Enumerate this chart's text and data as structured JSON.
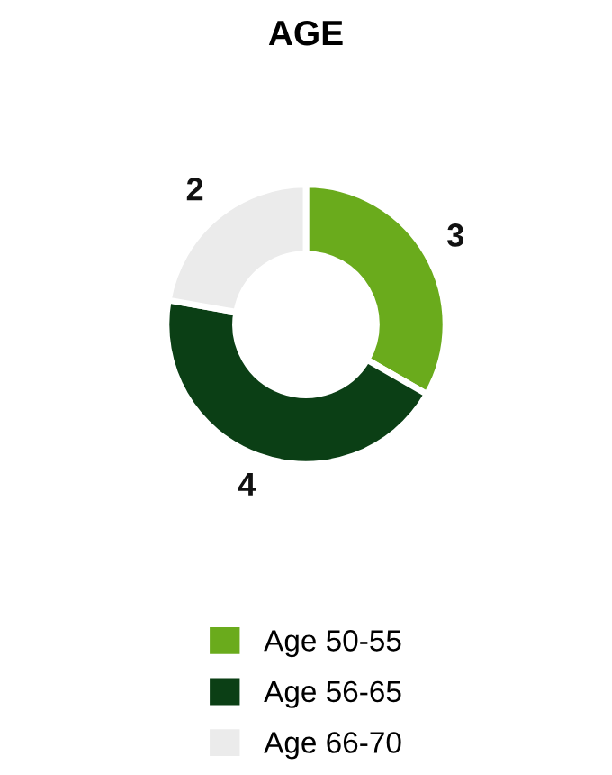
{
  "chart_data": {
    "type": "donut",
    "title": "AGE",
    "categories": [
      "Age 50-55",
      "Age 56-65",
      "Age 66-70"
    ],
    "values": [
      3,
      4,
      2
    ],
    "colors": [
      "#6aab1c",
      "#0b3f15",
      "#ebebeb"
    ],
    "data_labels": true,
    "legend": "bottom"
  }
}
